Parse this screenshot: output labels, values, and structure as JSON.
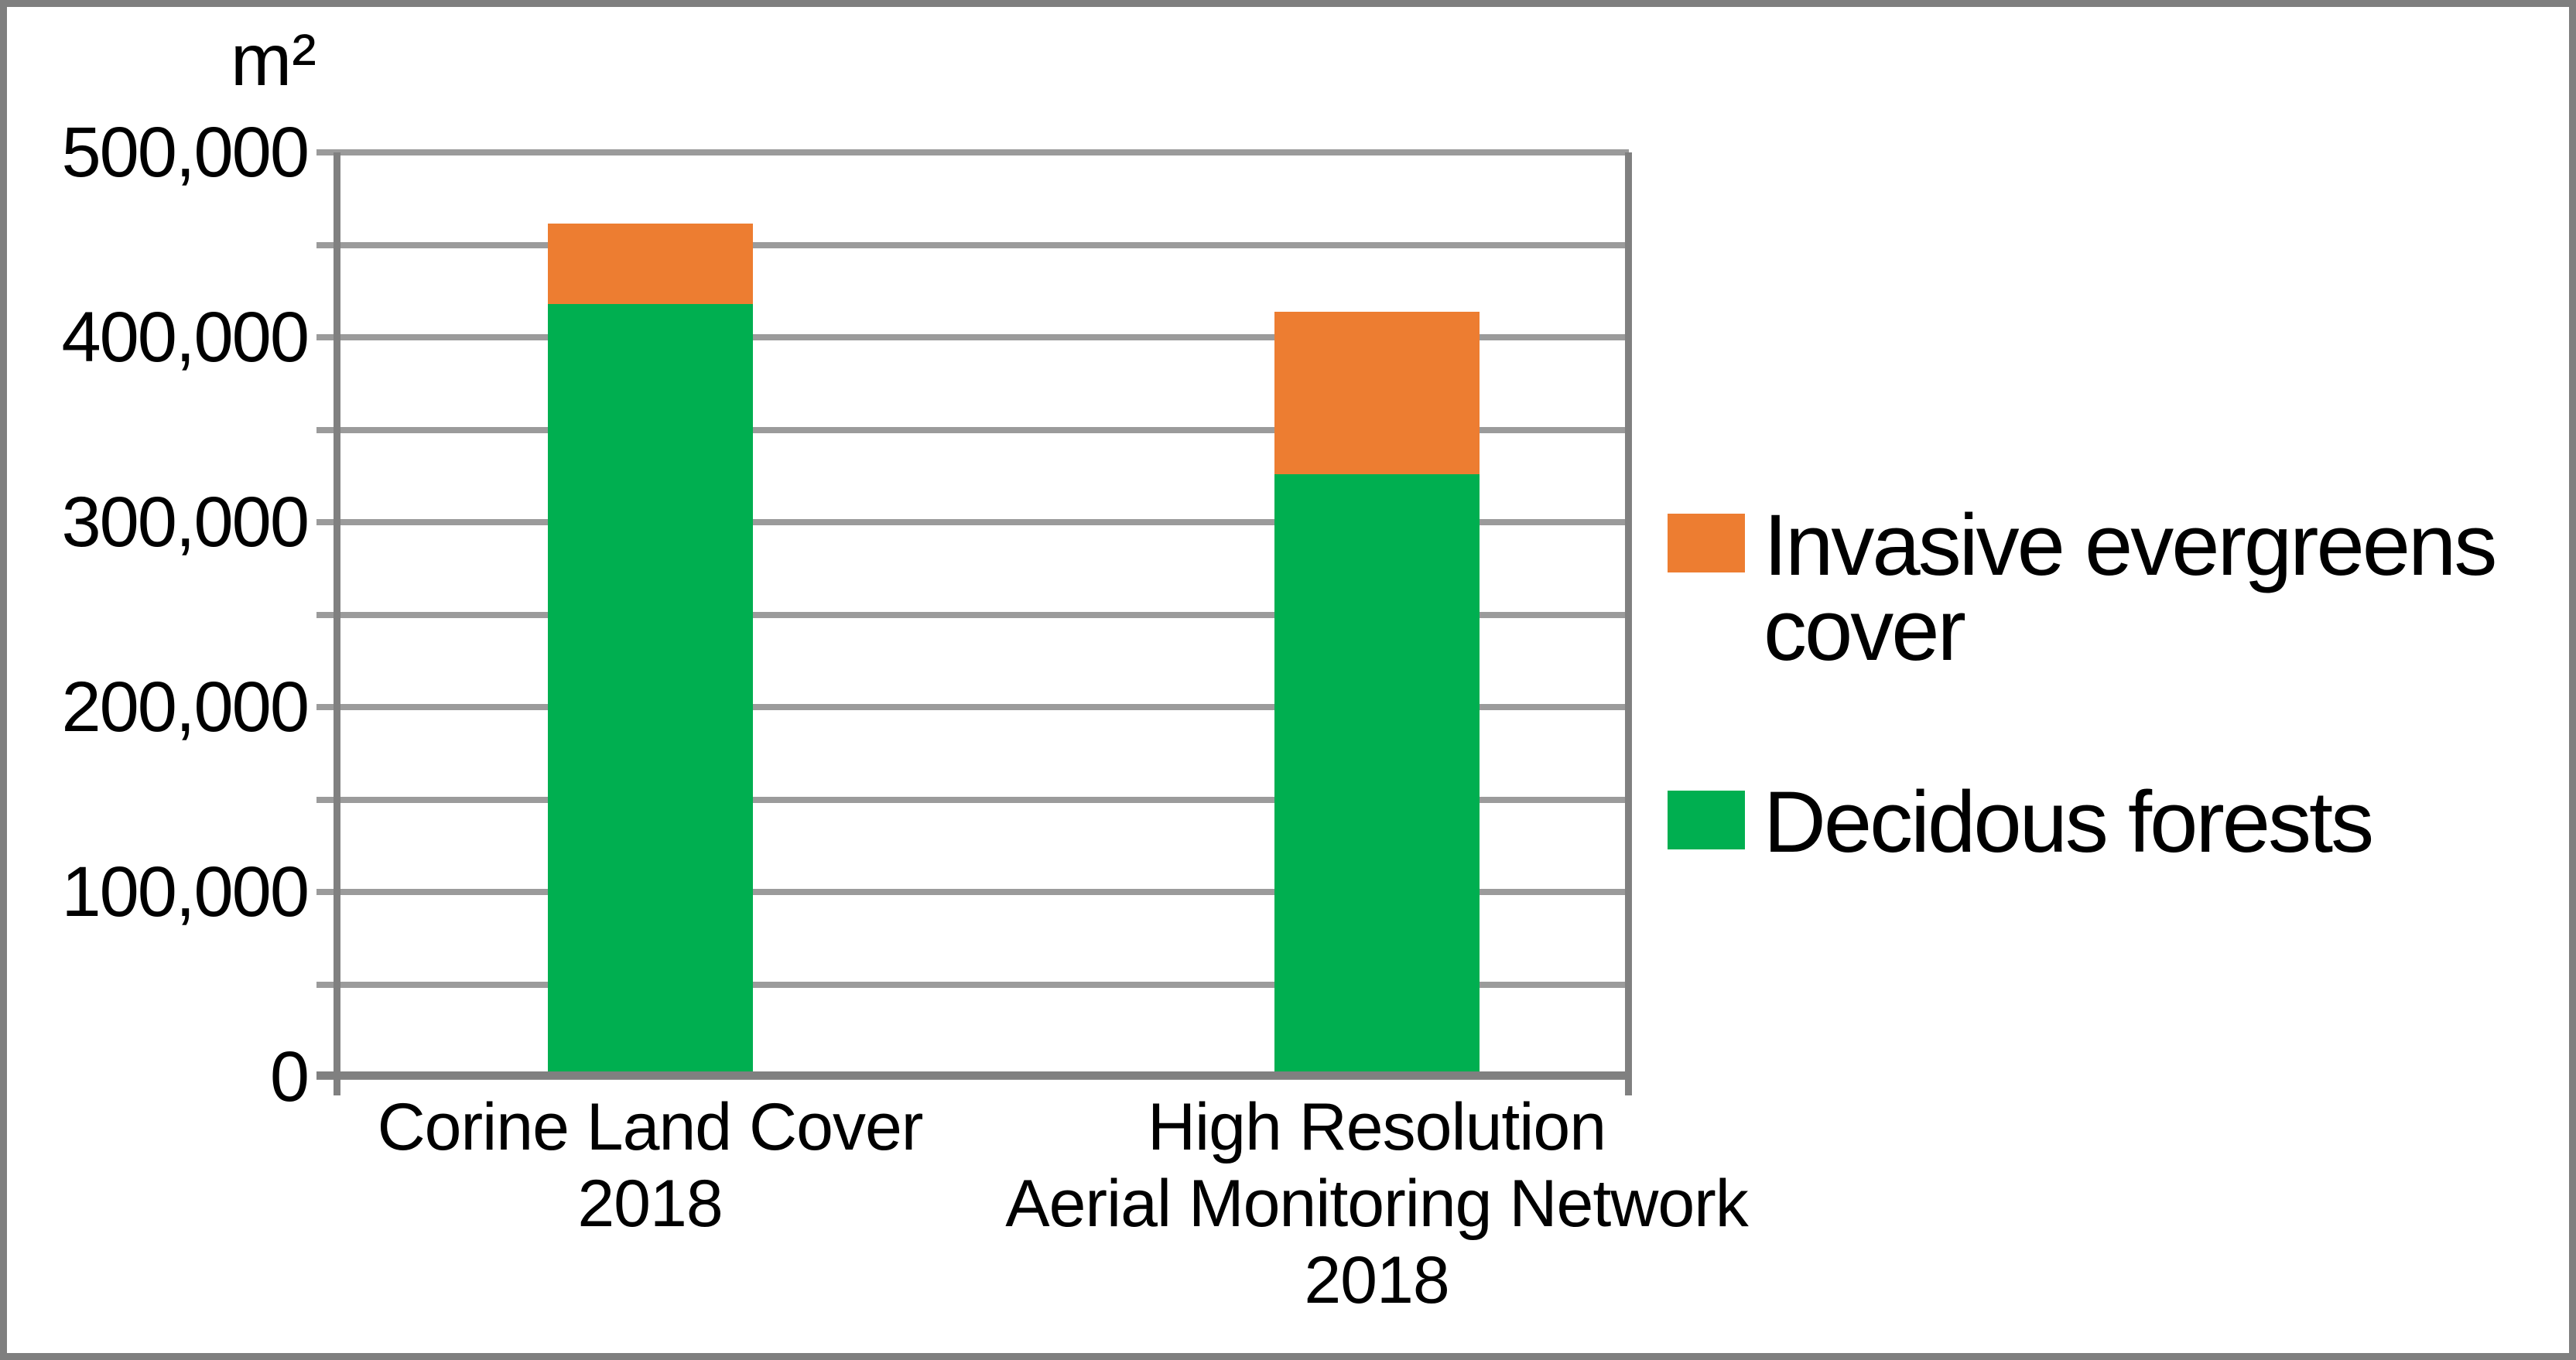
{
  "chart_data": {
    "type": "bar",
    "stacked": true,
    "unit_label": "m²",
    "ylim": [
      0,
      500000
    ],
    "gridline_step": 50000,
    "ytick_label_step": 100000,
    "y_tick_labels": [
      "500,000",
      "400,000",
      "300,000",
      "200,000",
      "100,000",
      "0"
    ],
    "categories": [
      {
        "lines": [
          "Corine Land Cover",
          "2018"
        ]
      },
      {
        "lines": [
          "High Resolution",
          "Aerial Monitoring Network",
          "2018"
        ]
      }
    ],
    "series": [
      {
        "name": "Decidous forests",
        "color": "#00AF50",
        "values": [
          418000,
          326000
        ]
      },
      {
        "name": "Invasive evergreens cover",
        "color": "#ED7D31",
        "values": [
          43500,
          88000
        ]
      }
    ],
    "grid": true,
    "legend_position": "right",
    "grid_color": "#9B9B9B",
    "axis_color": "#808080",
    "frame_color": "#7F7F7F",
    "text_color": "#000000"
  },
  "legend": {
    "items": [
      {
        "label": "Invasive evergreens cover",
        "color": "#ED7D31"
      },
      {
        "label": "Decidous forests",
        "color": "#00AF50"
      }
    ]
  }
}
